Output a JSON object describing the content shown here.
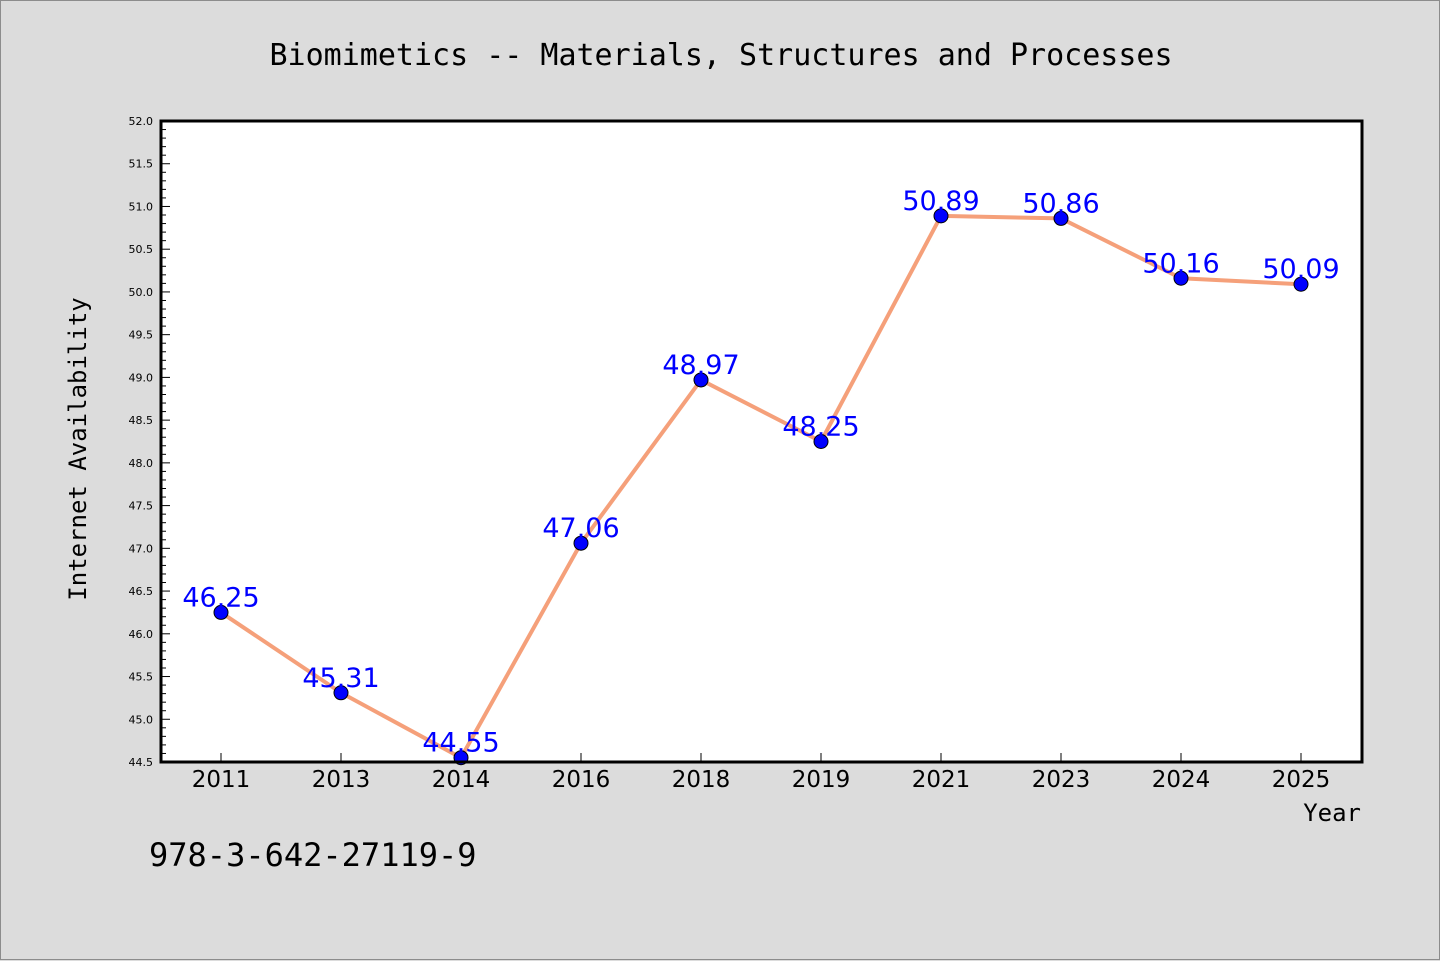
{
  "chart_data": {
    "type": "line",
    "title": "Biomimetics -- Materials, Structures and Processes",
    "xlabel": "Year",
    "ylabel": "Internet Availability",
    "categories": [
      "2011",
      "2013",
      "2014",
      "2016",
      "2018",
      "2019",
      "2021",
      "2023",
      "2024",
      "2025"
    ],
    "series": [
      {
        "values": [
          46.25,
          45.31,
          44.55,
          47.06,
          48.97,
          48.25,
          50.89,
          50.86,
          50.16,
          50.09
        ],
        "data_labels": [
          "46.25",
          "45.31",
          "44.55",
          "47.06",
          "48.97",
          "48.25",
          "50.89",
          "50.86",
          "50.16",
          "50.09"
        ],
        "line_color": "#f5a07a",
        "marker_color": "#0000ff"
      }
    ],
    "ylim": [
      44.5,
      52.0
    ],
    "yticks": [
      "44.5",
      "45.0",
      "45.5",
      "46.0",
      "46.5",
      "47.0",
      "47.5",
      "48.0",
      "48.5",
      "49.0",
      "49.5",
      "50.0",
      "50.5",
      "51.0",
      "51.5",
      "52.0"
    ],
    "grid": false,
    "legend": "none"
  },
  "footer": {
    "isbn": "978-3-642-27119-9"
  },
  "colors": {
    "background": "#dcdcdc",
    "plot_background": "#ffffff",
    "line": "#f5a07a",
    "marker": "#0000ff",
    "data_label": "#0000ff"
  }
}
